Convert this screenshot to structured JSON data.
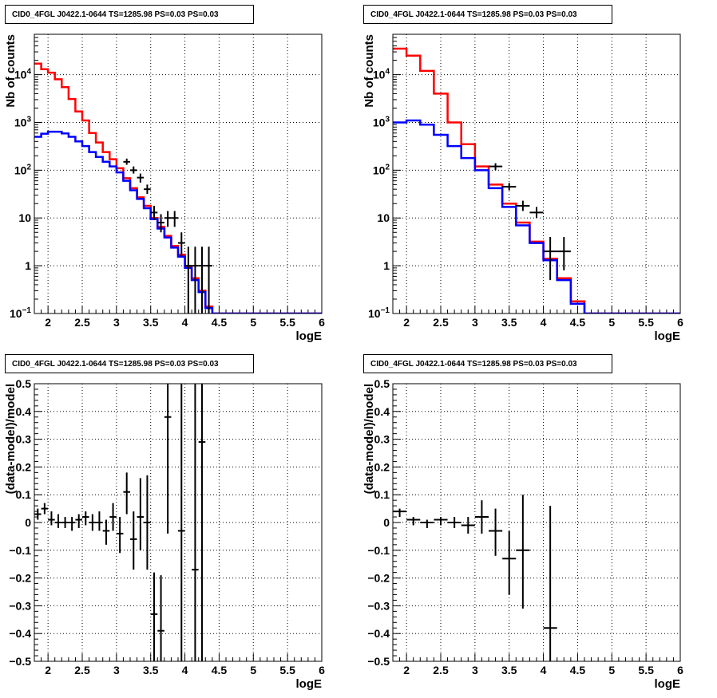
{
  "chart_data": [
    {
      "type": "line",
      "title": "CID0_4FGL J0422.1-0644 TS=1285.98 PS=0.03 PS=0.03",
      "xlabel": "logE",
      "ylabel": "Nb of counts",
      "yscale": "log",
      "xlim": [
        1.8,
        6.0
      ],
      "ylim": [
        0.1,
        70000
      ],
      "xticks": [
        "2",
        "2.5",
        "3",
        "3.5",
        "4",
        "4.5",
        "5",
        "5.5",
        "6"
      ],
      "yticks": [
        {
          "v": 0.1,
          "label": "10",
          "sup": "−1"
        },
        {
          "v": 1,
          "label": "1"
        },
        {
          "v": 10,
          "label": "10"
        },
        {
          "v": 100,
          "label": "10",
          "sup": "2"
        },
        {
          "v": 1000,
          "label": "10",
          "sup": "3"
        },
        {
          "v": 10000,
          "label": "10",
          "sup": "4"
        }
      ],
      "grid": true,
      "bin_edges_start": 1.8,
      "bin_width": 0.1,
      "series": [
        {
          "color": "#ff0000",
          "values": [
            17000,
            13000,
            11000,
            8000,
            5500,
            3100,
            1700,
            1100,
            600,
            380,
            240,
            170,
            110,
            68,
            42,
            27,
            18,
            10,
            6.5,
            4.2,
            2.6,
            1.7,
            0.95,
            0.55,
            0.3,
            0.14,
            0.1,
            0.1,
            0.1,
            0.1,
            0.1,
            0.1,
            0.1,
            0.1,
            0.1,
            0.1,
            0.1,
            0.1,
            0.1,
            0.1,
            0.1,
            0.1
          ]
        },
        {
          "color": "#0000ff",
          "values": [
            500,
            580,
            640,
            640,
            590,
            500,
            400,
            320,
            240,
            190,
            150,
            120,
            90,
            60,
            38,
            25,
            16,
            9.5,
            6.0,
            3.9,
            2.4,
            1.55,
            0.9,
            0.5,
            0.28,
            0.13,
            0.1,
            0.1,
            0.1,
            0.1,
            0.1,
            0.1,
            0.1,
            0.1,
            0.1,
            0.1,
            0.1,
            0.1,
            0.1,
            0.1,
            0.1,
            0.1
          ]
        }
      ],
      "points": [
        {
          "x": 3.15,
          "y": 150,
          "ylo": 130,
          "yhi": 175
        },
        {
          "x": 3.25,
          "y": 100,
          "ylo": 85,
          "yhi": 120
        },
        {
          "x": 3.35,
          "y": 70,
          "ylo": 55,
          "yhi": 85
        },
        {
          "x": 3.45,
          "y": 40,
          "ylo": 32,
          "yhi": 50
        },
        {
          "x": 3.55,
          "y": 13,
          "ylo": 9,
          "yhi": 18
        },
        {
          "x": 3.65,
          "y": 8,
          "ylo": 5,
          "yhi": 12
        },
        {
          "x": 3.75,
          "y": 10,
          "ylo": 6.5,
          "yhi": 14
        },
        {
          "x": 3.85,
          "y": 10,
          "ylo": 6.5,
          "yhi": 14
        },
        {
          "x": 3.95,
          "y": 3,
          "ylo": 1.6,
          "yhi": 5
        },
        {
          "x": 4.05,
          "y": 1,
          "ylo": 0.1,
          "yhi": 2.5
        },
        {
          "x": 4.15,
          "y": 1,
          "ylo": 0.1,
          "yhi": 2.5
        },
        {
          "x": 4.25,
          "y": 1,
          "ylo": 0.1,
          "yhi": 2.5
        },
        {
          "x": 4.35,
          "y": 1,
          "ylo": 0.1,
          "yhi": 2.5
        }
      ]
    },
    {
      "type": "line",
      "title": "CID0_4FGL J0422.1-0644 TS=1285.98 PS=0.03 PS=0.03",
      "xlabel": "logE",
      "ylabel": "Nb of counts",
      "yscale": "log",
      "xlim": [
        1.8,
        6.0
      ],
      "ylim": [
        0.1,
        70000
      ],
      "xticks": [
        "2",
        "2.5",
        "3",
        "3.5",
        "4",
        "4.5",
        "5",
        "5.5",
        "6"
      ],
      "yticks": [
        {
          "v": 0.1,
          "label": "10",
          "sup": "−1"
        },
        {
          "v": 1,
          "label": "1"
        },
        {
          "v": 10,
          "label": "10"
        },
        {
          "v": 100,
          "label": "10",
          "sup": "2"
        },
        {
          "v": 1000,
          "label": "10",
          "sup": "3"
        },
        {
          "v": 10000,
          "label": "10",
          "sup": "4"
        }
      ],
      "grid": true,
      "bin_edges_start": 1.8,
      "bin_width": 0.2,
      "series": [
        {
          "color": "#ff0000",
          "values": [
            35000,
            25000,
            12000,
            4000,
            1000,
            350,
            120,
            50,
            20,
            8,
            3.2,
            1.4,
            0.55,
            0.18,
            0.1,
            0.1,
            0.1,
            0.1,
            0.1,
            0.1,
            0.1
          ]
        },
        {
          "color": "#0000ff",
          "values": [
            1000,
            1100,
            900,
            550,
            320,
            180,
            100,
            42,
            17,
            7,
            3.0,
            1.3,
            0.5,
            0.16,
            0.1,
            0.1,
            0.1,
            0.1,
            0.1,
            0.1,
            0.1
          ]
        }
      ],
      "points": [
        {
          "x": 3.3,
          "y": 120,
          "ylo": 100,
          "yhi": 140
        },
        {
          "x": 3.5,
          "y": 45,
          "ylo": 38,
          "yhi": 54
        },
        {
          "x": 3.7,
          "y": 18,
          "ylo": 14,
          "yhi": 23
        },
        {
          "x": 3.9,
          "y": 13,
          "ylo": 10,
          "yhi": 17
        },
        {
          "x": 4.1,
          "y": 2,
          "ylo": 0.5,
          "yhi": 4
        },
        {
          "x": 4.3,
          "y": 2,
          "ylo": 0.8,
          "yhi": 4
        }
      ]
    },
    {
      "type": "scatter",
      "title": "CID0_4FGL J0422.1-0644 TS=1285.98 PS=0.03 PS=0.03",
      "xlabel": "logE",
      "ylabel": "(data-model)/model",
      "yscale": "linear",
      "xlim": [
        1.8,
        6.0
      ],
      "ylim": [
        -0.5,
        0.5
      ],
      "xticks": [
        "2",
        "2.5",
        "3",
        "3.5",
        "4",
        "4.5",
        "5",
        "5.5",
        "6"
      ],
      "yticks": [
        "−0.5",
        "−0.4",
        "−0.3",
        "−0.2",
        "−0.1",
        "0",
        "0.1",
        "0.2",
        "0.3",
        "0.4",
        "0.5"
      ],
      "grid": true,
      "xerr": 0.05,
      "points": [
        {
          "x": 1.85,
          "y": 0.03,
          "ylo": 0.01,
          "yhi": 0.05
        },
        {
          "x": 1.95,
          "y": 0.05,
          "ylo": 0.03,
          "yhi": 0.07
        },
        {
          "x": 2.05,
          "y": 0.01,
          "ylo": -0.01,
          "yhi": 0.04
        },
        {
          "x": 2.15,
          "y": 0.0,
          "ylo": -0.02,
          "yhi": 0.03
        },
        {
          "x": 2.25,
          "y": 0.0,
          "ylo": -0.02,
          "yhi": 0.02
        },
        {
          "x": 2.35,
          "y": 0.0,
          "ylo": -0.03,
          "yhi": 0.02
        },
        {
          "x": 2.45,
          "y": 0.01,
          "ylo": -0.02,
          "yhi": 0.03
        },
        {
          "x": 2.55,
          "y": 0.02,
          "ylo": -0.01,
          "yhi": 0.04
        },
        {
          "x": 2.65,
          "y": 0.0,
          "ylo": -0.03,
          "yhi": 0.03
        },
        {
          "x": 2.75,
          "y": 0.0,
          "ylo": -0.03,
          "yhi": 0.04
        },
        {
          "x": 2.85,
          "y": -0.03,
          "ylo": -0.08,
          "yhi": 0.01
        },
        {
          "x": 2.95,
          "y": 0.02,
          "ylo": -0.03,
          "yhi": 0.07
        },
        {
          "x": 3.05,
          "y": -0.04,
          "ylo": -0.11,
          "yhi": 0.02
        },
        {
          "x": 3.15,
          "y": 0.11,
          "ylo": 0.03,
          "yhi": 0.18
        },
        {
          "x": 3.25,
          "y": -0.06,
          "ylo": -0.17,
          "yhi": 0.04
        },
        {
          "x": 3.35,
          "y": 0.02,
          "ylo": -0.1,
          "yhi": 0.16
        },
        {
          "x": 3.45,
          "y": 0.0,
          "ylo": -0.17,
          "yhi": 0.17
        },
        {
          "x": 3.55,
          "y": -0.33,
          "ylo": -0.5,
          "yhi": -0.18
        },
        {
          "x": 3.65,
          "y": -0.39,
          "ylo": -0.5,
          "yhi": -0.19
        },
        {
          "x": 3.75,
          "y": 0.38,
          "ylo": -0.04,
          "yhi": 0.5
        },
        {
          "x": 3.95,
          "y": -0.03,
          "ylo": -0.5,
          "yhi": 0.5
        },
        {
          "x": 4.15,
          "y": -0.17,
          "ylo": -0.5,
          "yhi": 0.5
        },
        {
          "x": 4.25,
          "y": 0.29,
          "ylo": -0.5,
          "yhi": 0.5
        }
      ]
    },
    {
      "type": "scatter",
      "title": "CID0_4FGL J0422.1-0644 TS=1285.98 PS=0.03 PS=0.03",
      "xlabel": "logE",
      "ylabel": "(data-model)/model",
      "yscale": "linear",
      "xlim": [
        1.8,
        6.0
      ],
      "ylim": [
        -0.5,
        0.5
      ],
      "xticks": [
        "2",
        "2.5",
        "3",
        "3.5",
        "4",
        "4.5",
        "5",
        "5.5",
        "6"
      ],
      "yticks": [
        "−0.5",
        "−0.4",
        "−0.3",
        "−0.2",
        "−0.1",
        "0",
        "0.1",
        "0.2",
        "0.3",
        "0.4",
        "0.5"
      ],
      "grid": true,
      "xerr": 0.1,
      "points": [
        {
          "x": 1.9,
          "y": 0.04,
          "ylo": 0.02,
          "yhi": 0.05
        },
        {
          "x": 2.1,
          "y": 0.01,
          "ylo": -0.01,
          "yhi": 0.02
        },
        {
          "x": 2.3,
          "y": 0.0,
          "ylo": -0.02,
          "yhi": 0.01
        },
        {
          "x": 2.5,
          "y": 0.01,
          "ylo": -0.01,
          "yhi": 0.02
        },
        {
          "x": 2.7,
          "y": 0.0,
          "ylo": -0.02,
          "yhi": 0.02
        },
        {
          "x": 2.9,
          "y": -0.01,
          "ylo": -0.04,
          "yhi": 0.02
        },
        {
          "x": 3.1,
          "y": 0.02,
          "ylo": -0.04,
          "yhi": 0.08
        },
        {
          "x": 3.3,
          "y": -0.03,
          "ylo": -0.12,
          "yhi": 0.05
        },
        {
          "x": 3.5,
          "y": -0.13,
          "ylo": -0.26,
          "yhi": -0.03
        },
        {
          "x": 3.7,
          "y": -0.1,
          "ylo": -0.31,
          "yhi": 0.1
        },
        {
          "x": 4.1,
          "y": -0.38,
          "ylo": -0.5,
          "yhi": 0.06
        }
      ]
    }
  ]
}
